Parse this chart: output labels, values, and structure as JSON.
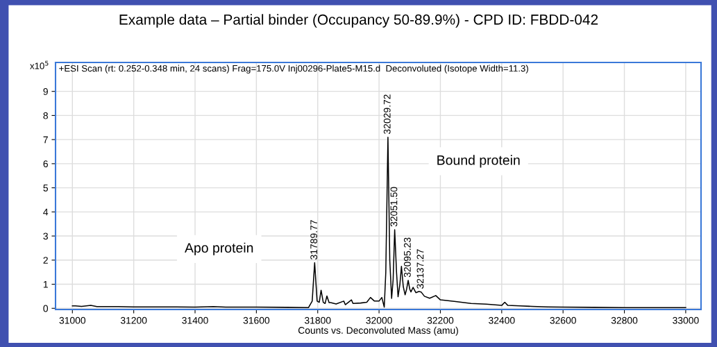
{
  "chart_data": {
    "type": "line",
    "title": "Example data – Partial binder (Occupancy 50-89.9%) - CPD ID: FBDD-042",
    "xlabel": "Counts vs. Deconvoluted Mass (amu)",
    "x": [
      31000,
      31010,
      31030,
      31060,
      31080,
      31150,
      31200,
      31300,
      31400,
      31460,
      31500,
      31600,
      31700,
      31770,
      31782,
      31790,
      31798,
      31805,
      31811,
      31818,
      31824,
      31830,
      31837,
      31842,
      31860,
      31885,
      31890,
      31910,
      31915,
      31940,
      31960,
      31972,
      31985,
      32000,
      32009,
      32017,
      32022,
      32029,
      32035,
      32041,
      32046,
      32051,
      32057,
      32062,
      32068,
      32073,
      32079,
      32085,
      32090,
      32095,
      32100,
      32104,
      32111,
      32120,
      32130,
      32137,
      32148,
      32165,
      32185,
      32200,
      32250,
      32300,
      32350,
      32400,
      32410,
      32420,
      32460,
      32500,
      32550,
      32600,
      32700,
      32800,
      32900,
      33000
    ],
    "series": [
      {
        "color": "#000000",
        "values": [
          0.1,
          0.1,
          0.08,
          0.12,
          0.07,
          0.07,
          0.06,
          0.06,
          0.05,
          0.07,
          0.05,
          0.05,
          0.04,
          0.03,
          0.3,
          1.89,
          0.3,
          0.25,
          0.75,
          0.25,
          0.2,
          0.51,
          0.24,
          0.24,
          0.18,
          0.3,
          0.15,
          0.35,
          0.2,
          0.22,
          0.25,
          0.45,
          0.3,
          0.3,
          0.45,
          0.05,
          1.5,
          7.1,
          2.0,
          0.41,
          1.2,
          3.26,
          1.5,
          0.48,
          1.0,
          1.74,
          0.9,
          0.56,
          0.8,
          1.16,
          0.8,
          0.68,
          0.87,
          0.65,
          0.7,
          0.68,
          0.5,
          0.42,
          0.53,
          0.35,
          0.28,
          0.2,
          0.17,
          0.12,
          0.25,
          0.12,
          0.1,
          0.08,
          0.06,
          0.05,
          0.04,
          0.03,
          0.03,
          0.03
        ]
      }
    ],
    "xlim": [
      30945,
      33050
    ],
    "ylim": [
      -0.05,
      10.2
    ],
    "xticks": [
      31000,
      31200,
      31400,
      31600,
      31800,
      32000,
      32200,
      32400,
      32600,
      32800,
      33000
    ],
    "yticks": [
      0,
      1,
      2,
      3,
      4,
      5,
      6,
      7,
      8,
      9
    ],
    "grid": true,
    "marker": "none",
    "line_style": "solid",
    "annotations": [
      "+ESI Scan (rt: 0.252-0.348 min, 24 scans) Frag=175.0V Inj00296-Plate5-M15.d  Deconvoluted (Isotope Width=11.3)",
      "x10$^{5}$",
      "Apo protein",
      "Bound protein",
      {
        "text": "31789.77",
        "x": 31790,
        "y": 1.89
      },
      {
        "text": "32029.72",
        "x": 32029,
        "y": 7.1
      },
      {
        "text": "32051.50",
        "x": 32051,
        "y": 3.26
      },
      {
        "text": "32095.23",
        "x": 32095,
        "y": 1.16
      },
      {
        "text": "32137.27",
        "x": 32137,
        "y": 0.68
      }
    ]
  }
}
